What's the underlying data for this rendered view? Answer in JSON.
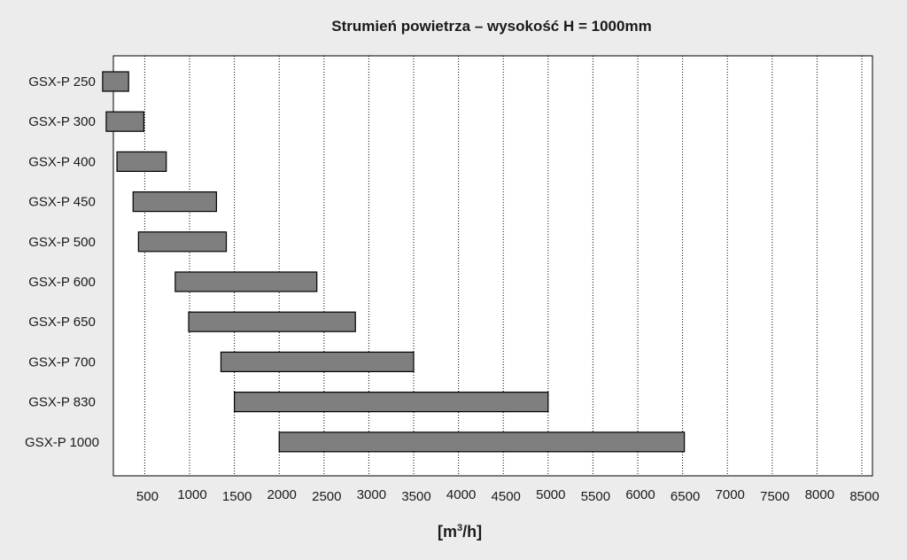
{
  "chart_data": {
    "type": "bar",
    "orientation": "horizontal",
    "bar_style": "floating-range",
    "title": "Strumień powietrza – wysokość H = 1000mm",
    "xlabel": "[m³/h]",
    "xlabel_parts": {
      "pre": "[m",
      "sup": "3",
      "post": "/h]"
    },
    "ylabel": "",
    "categories": [
      "GSX-P 250",
      "GSX-P 300",
      "GSX-P 400",
      "GSX-P 450",
      "GSX-P 500",
      "GSX-P 600",
      "GSX-P 650",
      "GSX-P 700",
      "GSX-P 830",
      "GSX-P 1000"
    ],
    "series": [
      {
        "ranges": [
          [
            30,
            320
          ],
          [
            70,
            490
          ],
          [
            190,
            740
          ],
          [
            370,
            1300
          ],
          [
            430,
            1410
          ],
          [
            840,
            2420
          ],
          [
            990,
            2850
          ],
          [
            1350,
            3500
          ],
          [
            1500,
            5000
          ],
          [
            2000,
            6520
          ]
        ]
      }
    ],
    "xlim": [
      0,
      8500
    ],
    "xticks": [
      500,
      1000,
      1500,
      2000,
      2500,
      3000,
      3500,
      4000,
      4500,
      5000,
      5500,
      6000,
      6500,
      7000,
      7500,
      8000,
      8500
    ],
    "grid": "vertical-dashed",
    "legend": "none",
    "colors": {
      "bar_fill": "#7f7f7f",
      "bar_stroke": "#000000",
      "plot_bg": "#ffffff",
      "page_bg": "#ececec",
      "grid": "#000000"
    }
  }
}
